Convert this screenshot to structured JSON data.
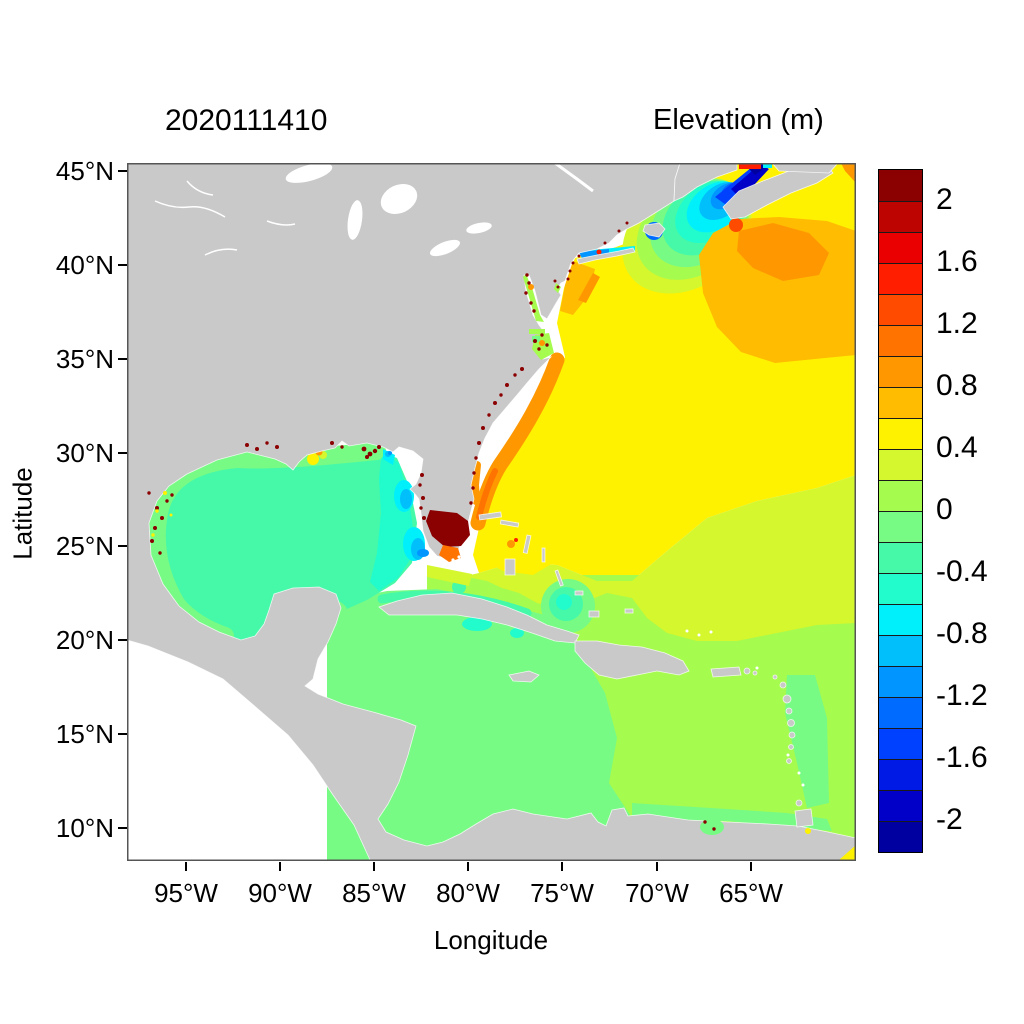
{
  "title": "2020111410",
  "colorbar": {
    "title": "Elevation (m)",
    "labels": [
      "2",
      "1.6",
      "1.2",
      "0.8",
      "0.4",
      "0",
      "-0.4",
      "-0.8",
      "-1.2",
      "-1.6",
      "-2"
    ],
    "levels": [
      {
        "range": [
          2.0,
          2.2
        ],
        "color": "#8B0000"
      },
      {
        "range": [
          1.8,
          2.0
        ],
        "color": "#BE0400"
      },
      {
        "range": [
          1.6,
          1.8
        ],
        "color": "#EA0000"
      },
      {
        "range": [
          1.4,
          1.6
        ],
        "color": "#FF1E00"
      },
      {
        "range": [
          1.2,
          1.4
        ],
        "color": "#FF4B00"
      },
      {
        "range": [
          1.0,
          1.2
        ],
        "color": "#FF7300"
      },
      {
        "range": [
          0.8,
          1.0
        ],
        "color": "#FF9800"
      },
      {
        "range": [
          0.6,
          0.8
        ],
        "color": "#FFBC00"
      },
      {
        "range": [
          0.4,
          0.6
        ],
        "color": "#FFF200"
      },
      {
        "range": [
          0.2,
          0.4
        ],
        "color": "#D4F72E"
      },
      {
        "range": [
          0.0,
          0.2
        ],
        "color": "#A6FB4F"
      },
      {
        "range": [
          -0.2,
          0.0
        ],
        "color": "#77FB84"
      },
      {
        "range": [
          -0.4,
          -0.2
        ],
        "color": "#45F9A8"
      },
      {
        "range": [
          -0.6,
          -0.4
        ],
        "color": "#22FBCC"
      },
      {
        "range": [
          -0.8,
          -0.6
        ],
        "color": "#00F0FB"
      },
      {
        "range": [
          -1.0,
          -0.8
        ],
        "color": "#00BFFB"
      },
      {
        "range": [
          -1.2,
          -1.0
        ],
        "color": "#0095FF"
      },
      {
        "range": [
          -1.4,
          -1.2
        ],
        "color": "#006BFF"
      },
      {
        "range": [
          -1.6,
          -1.4
        ],
        "color": "#0041FF"
      },
      {
        "range": [
          -1.8,
          -1.6
        ],
        "color": "#001AE6"
      },
      {
        "range": [
          -2.0,
          -1.8
        ],
        "color": "#0000C8"
      },
      {
        "range": [
          -2.2,
          -2.0
        ],
        "color": "#0000A0"
      }
    ]
  },
  "axes": {
    "x": {
      "title": "Longitude",
      "ticks": [
        "95°W",
        "90°W",
        "85°W",
        "80°W",
        "75°W",
        "70°W",
        "65°W"
      ]
    },
    "y": {
      "title": "Latitude",
      "ticks": [
        "45°N",
        "40°N",
        "35°N",
        "30°N",
        "25°N",
        "20°N",
        "15°N",
        "10°N"
      ]
    }
  },
  "chart_data": {
    "type": "heatmap",
    "field": "Elevation (m)",
    "time_label": "2020111410",
    "domain": {
      "lon_deg_w": [
        98.1,
        59.5
      ],
      "lat_deg_n": [
        8.3,
        45.4
      ]
    },
    "land_color": "#C9C9C9",
    "outside_domain_color": "#FFFFFF",
    "legend_position": "right",
    "grid": false,
    "regions": [
      {
        "name": "open Atlantic (Gulf Stream / Sargasso north)",
        "approx_value_m": 0.5
      },
      {
        "name": "Scotian Shelf SE of Nova Scotia",
        "approx_value_m": 0.9
      },
      {
        "name": "NE corner surround band",
        "approx_value_m": 0.7
      },
      {
        "name": "Gulf of Maine",
        "approx_value_m": -0.7
      },
      {
        "name": "Bay of Fundy head",
        "approx_value_m": -2.1
      },
      {
        "name": "Cape Cod vicinity",
        "approx_value_m": -1.4
      },
      {
        "name": "Long Island Sound",
        "approx_value_m": -0.8
      },
      {
        "name": "New York Bight coastal wedge",
        "approx_value_m": 0.7
      },
      {
        "name": "Carolinas-Georgia coastal band",
        "approx_value_m": 0.9
      },
      {
        "name": "estuary/marsh speckles along coasts",
        "approx_value_m": 2.1
      },
      {
        "name": "Southeast Florida (Everglades/Biscayne blob)",
        "approx_value_m": 2.1
      },
      {
        "name": "NE Florida nearshore",
        "approx_value_m": 0.9
      },
      {
        "name": "Florida west shelf",
        "approx_value_m": -0.5
      },
      {
        "name": "Tampa Bay / SW Florida cores",
        "approx_value_m": -0.9
      },
      {
        "name": "Apalachee Bay",
        "approx_value_m": -0.9
      },
      {
        "name": "Gulf of Mexico basin",
        "approx_value_m": -0.3
      },
      {
        "name": "Gulf rim (Texas-Mexico-NE Gulf)",
        "approx_value_m": -0.1
      },
      {
        "name": "Louisiana marshes",
        "approx_value_m": 1.1
      },
      {
        "name": "subtropical Atlantic band 23-29N",
        "approx_value_m": 0.3
      },
      {
        "name": "Bahamas banks yellow blob",
        "approx_value_m": 0.5
      },
      {
        "name": "Andros rings (aqua core)",
        "approx_value_m": -0.5
      },
      {
        "name": "eastern Caribbean / tropical Atlantic",
        "approx_value_m": 0.1
      },
      {
        "name": "western Caribbean",
        "approx_value_m": -0.1
      },
      {
        "name": "Venezuela coastal band",
        "approx_value_m": -0.1
      }
    ]
  }
}
